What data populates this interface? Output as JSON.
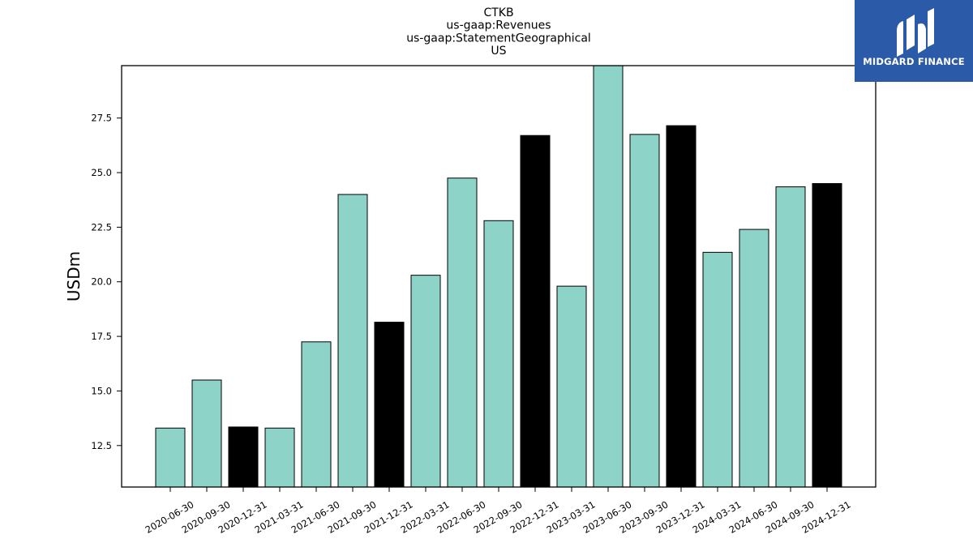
{
  "chart_data": {
    "type": "bar",
    "title_lines": [
      "CTKB",
      "us-gaap:Revenues",
      "us-gaap:StatementGeographical",
      "US"
    ],
    "ylabel": "USDm",
    "xlabel": "",
    "ylim": [
      10.6,
      29.9
    ],
    "yticks": [
      "12.5",
      "15.0",
      "17.5",
      "20.0",
      "22.5",
      "25.0",
      "27.5"
    ],
    "ytick_values": [
      12.5,
      15.0,
      17.5,
      20.0,
      22.5,
      25.0,
      27.5
    ],
    "categories": [
      "2020-06-30",
      "2020-09-30",
      "2020-12-31",
      "2021-03-31",
      "2021-06-30",
      "2021-09-30",
      "2021-12-31",
      "2022-03-31",
      "2022-06-30",
      "2022-09-30",
      "2022-12-31",
      "2023-03-31",
      "2023-06-30",
      "2023-09-30",
      "2023-12-31",
      "2024-03-31",
      "2024-06-30",
      "2024-09-30",
      "2024-12-31"
    ],
    "values": [
      13.3,
      15.5,
      13.35,
      13.3,
      17.25,
      24.0,
      18.15,
      20.3,
      24.75,
      22.8,
      26.7,
      19.8,
      29.9,
      26.75,
      27.15,
      21.35,
      22.4,
      24.35,
      24.5
    ],
    "highlight": [
      false,
      false,
      true,
      false,
      false,
      false,
      true,
      false,
      false,
      false,
      true,
      false,
      false,
      false,
      true,
      false,
      false,
      false,
      true
    ],
    "colors": {
      "normal": "#8dd3c7",
      "highlight": "#000000",
      "edge": "#000000"
    },
    "grid": false,
    "legend": "none"
  },
  "logo": {
    "text": "MIDGARD FINANCE",
    "icon": "midgard-logo-icon",
    "background": "#2b5aa8"
  }
}
